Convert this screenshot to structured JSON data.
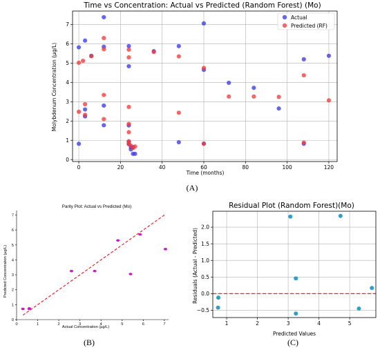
{
  "panels": {
    "A": "(A)",
    "B": "(B)",
    "C": "(C)"
  },
  "colors": {
    "actual": "#3b3be8",
    "predicted": "#f23b3b",
    "parity_points": "#c21ec2",
    "parity_line": "#e8262b",
    "residual_points": "#2f9fca",
    "zero_line": "#e8262b"
  },
  "chart_data": [
    {
      "type": "scatter",
      "title": "Time vs Concentration: Actual vs Predicted (Random Forest) (Mo)",
      "xlabel": "Time (months)",
      "ylabel": "Molybdenum Concentration (µg/L)",
      "xlim": [
        -3,
        124
      ],
      "ylim": [
        -0.1,
        7.7
      ],
      "xticks": [
        0,
        20,
        40,
        60,
        80,
        100,
        120
      ],
      "yticks": [
        0,
        1,
        2,
        3,
        4,
        5,
        6,
        7
      ],
      "grid": true,
      "legend_position": "top-right",
      "series": [
        {
          "name": "Actual",
          "points": [
            [
              0,
              0.82
            ],
            [
              0,
              5.82
            ],
            [
              3,
              6.17
            ],
            [
              3,
              2.6
            ],
            [
              3,
              2.24
            ],
            [
              6,
              5.38
            ],
            [
              12,
              7.38
            ],
            [
              12,
              5.85
            ],
            [
              12,
              2.8
            ],
            [
              12,
              1.78
            ],
            [
              24,
              5.88
            ],
            [
              24,
              4.84
            ],
            [
              24,
              1.77
            ],
            [
              24,
              0.92
            ],
            [
              24,
              0.8
            ],
            [
              25,
              0.65
            ],
            [
              25,
              0.53
            ],
            [
              26,
              0.65
            ],
            [
              26,
              0.3
            ],
            [
              27,
              0.3
            ],
            [
              36,
              5.62
            ],
            [
              48,
              5.88
            ],
            [
              48,
              0.9
            ],
            [
              60,
              7.06
            ],
            [
              60,
              4.65
            ],
            [
              60,
              0.83
            ],
            [
              72,
              3.98
            ],
            [
              84,
              3.72
            ],
            [
              96,
              2.65
            ],
            [
              108,
              5.2
            ],
            [
              108,
              0.82
            ],
            [
              120,
              5.38
            ]
          ]
        },
        {
          "name": "Predicted (RF)",
          "points": [
            [
              0,
              2.48
            ],
            [
              0,
              5.02
            ],
            [
              2,
              5.12
            ],
            [
              3,
              2.87
            ],
            [
              3,
              2.32
            ],
            [
              6,
              5.36
            ],
            [
              12,
              6.3
            ],
            [
              12,
              5.72
            ],
            [
              12,
              3.35
            ],
            [
              12,
              2.1
            ],
            [
              24,
              5.7
            ],
            [
              24,
              5.3
            ],
            [
              24,
              2.73
            ],
            [
              24,
              1.85
            ],
            [
              24,
              1.42
            ],
            [
              24,
              0.95
            ],
            [
              24,
              0.82
            ],
            [
              25,
              0.72
            ],
            [
              26,
              0.6
            ],
            [
              27,
              0.68
            ],
            [
              36,
              5.58
            ],
            [
              48,
              5.35
            ],
            [
              48,
              2.43
            ],
            [
              60,
              4.75
            ],
            [
              60,
              0.82
            ],
            [
              72,
              3.27
            ],
            [
              84,
              3.27
            ],
            [
              96,
              3.25
            ],
            [
              108,
              4.37
            ],
            [
              108,
              0.88
            ],
            [
              120,
              3.07
            ]
          ]
        }
      ]
    },
    {
      "type": "scatter",
      "title": "Parity Plot: Actual vs Predicted (Mo)",
      "xlabel": "Actual Concentration (µg/L)",
      "ylabel": "Predicted Concentration (µg/L)",
      "xlim": [
        0,
        7.2
      ],
      "ylim": [
        0,
        7.3
      ],
      "xticks": [
        0,
        1,
        2,
        3,
        4,
        5,
        6,
        7
      ],
      "yticks": [
        0,
        1,
        2,
        3,
        4,
        5,
        6,
        7
      ],
      "grid": false,
      "reference_line": [
        [
          0.3,
          0.3
        ],
        [
          7.05,
          7.05
        ]
      ],
      "points": [
        [
          0.3,
          0.72
        ],
        [
          0.6,
          0.75
        ],
        [
          0.6,
          0.72
        ],
        [
          2.6,
          3.25
        ],
        [
          3.7,
          3.25
        ],
        [
          4.8,
          5.3
        ],
        [
          5.4,
          3.05
        ],
        [
          5.85,
          5.7
        ],
        [
          7.05,
          4.72
        ]
      ]
    },
    {
      "type": "scatter",
      "title": "Residual Plot (Random Forest)(Mo)",
      "xlabel": "Predicted Values",
      "ylabel": "Residuals (Actual - Predicted)",
      "xlim": [
        0.55,
        5.85
      ],
      "ylim": [
        -0.72,
        2.48
      ],
      "xticks": [
        1,
        2,
        3,
        4,
        5
      ],
      "yticks": [
        -0.5,
        0.0,
        0.5,
        1.0,
        1.5,
        2.0
      ],
      "ytick_labels": [
        "−0.5",
        "0.0",
        "0.5",
        "1.0",
        "1.5",
        "2.0"
      ],
      "grid": true,
      "zero_line": 0,
      "points": [
        [
          0.72,
          -0.42
        ],
        [
          0.73,
          -0.12
        ],
        [
          3.07,
          2.32
        ],
        [
          3.25,
          0.46
        ],
        [
          3.25,
          -0.6
        ],
        [
          4.7,
          2.34
        ],
        [
          5.3,
          -0.45
        ],
        [
          5.72,
          0.17
        ]
      ]
    }
  ]
}
